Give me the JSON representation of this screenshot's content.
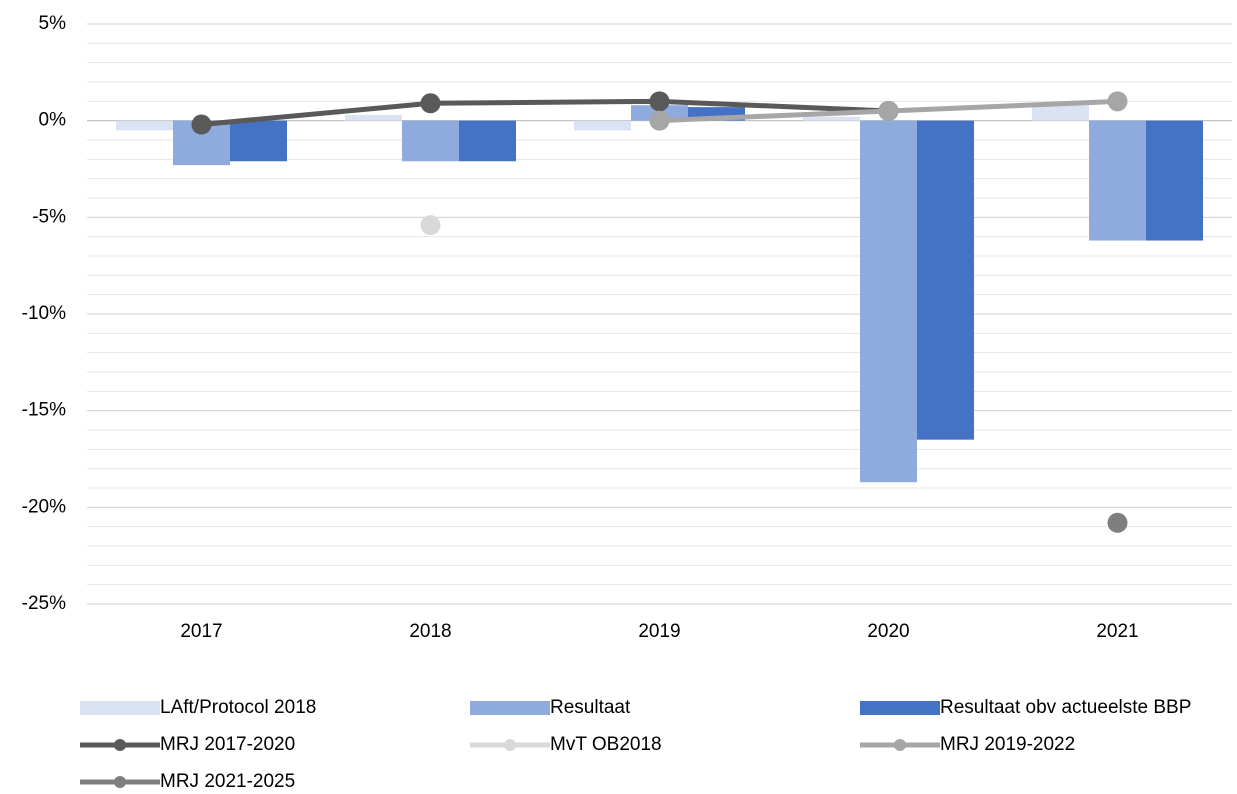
{
  "chart_data": {
    "type": "bar",
    "categories": [
      "2017",
      "2018",
      "2019",
      "2020",
      "2021"
    ],
    "series": [
      {
        "name": "LAft/Protocol 2018",
        "type": "bar",
        "color": "#dae3f3",
        "values": [
          -0.5,
          0.3,
          -0.5,
          0.2,
          0.9
        ]
      },
      {
        "name": "Resultaat",
        "type": "bar",
        "color": "#8faadc",
        "values": [
          -2.3,
          -2.1,
          0.8,
          -18.7,
          -6.2
        ]
      },
      {
        "name": "Resultaat obv actueelste BBP",
        "type": "bar",
        "color": "#4472c4",
        "values": [
          -2.1,
          -2.1,
          0.7,
          -16.5,
          -6.2
        ]
      },
      {
        "name": "MRJ 2017-2020",
        "type": "line",
        "color": "#595959",
        "values": [
          -0.2,
          0.9,
          1.0,
          0.5,
          null
        ]
      },
      {
        "name": "MvT OB2018",
        "type": "line",
        "color": "#d9d9d9",
        "values": [
          null,
          -5.4,
          null,
          null,
          null
        ]
      },
      {
        "name": "MRJ 2019-2022",
        "type": "line",
        "color": "#a6a6a6",
        "values": [
          null,
          null,
          0.0,
          0.5,
          1.0
        ]
      },
      {
        "name": "MRJ 2021-2025",
        "type": "line",
        "color": "#7f7f7f",
        "values": [
          null,
          null,
          null,
          null,
          -20.8
        ]
      }
    ],
    "ylim": [
      -25,
      5
    ],
    "yticks": [
      {
        "value": 5,
        "label": "5%"
      },
      {
        "value": 0,
        "label": "0%"
      },
      {
        "value": -5,
        "label": "-5%"
      },
      {
        "value": -10,
        "label": "-10%"
      },
      {
        "value": -15,
        "label": "-15%"
      },
      {
        "value": -20,
        "label": "-20%"
      },
      {
        "value": -25,
        "label": "-25%"
      }
    ],
    "minor_yticks": [
      4,
      3,
      2,
      1,
      -1,
      -2,
      -3,
      -4,
      -6,
      -7,
      -8,
      -9,
      -11,
      -12,
      -13,
      -14,
      -16,
      -17,
      -18,
      -19,
      -21,
      -22,
      -23,
      -24
    ],
    "grid": true,
    "legend": "bottom"
  }
}
